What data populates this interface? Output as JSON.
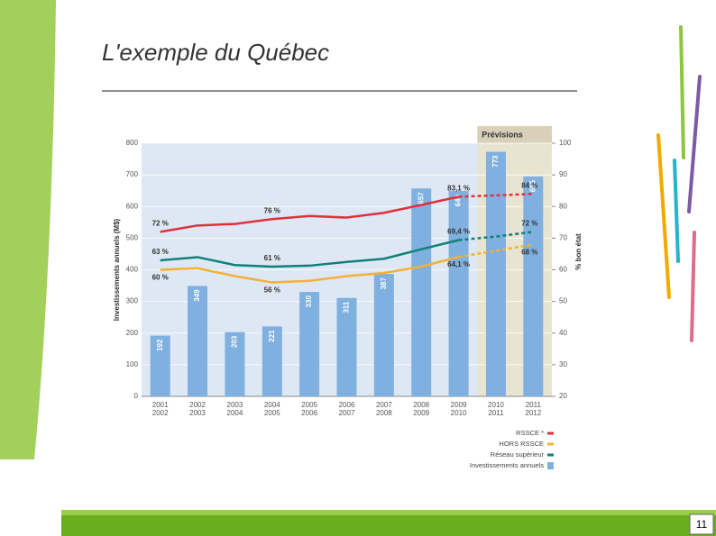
{
  "slide_title": "L'exemple du Québec",
  "page_number": "11",
  "chart_data": {
    "type": "bar",
    "categories": [
      "2001 2002",
      "2002 2003",
      "2003 2004",
      "2004 2005",
      "2005 2006",
      "2006 2007",
      "2007 2008",
      "2008 2009",
      "2009 2010",
      "2010 2011",
      "2011 2012"
    ],
    "ylabel": "Investissements annuels (M$)",
    "y2label": "% bon état",
    "annotation": "Prévisions",
    "forecast_from": "2010 2011",
    "ylim": [
      0,
      800
    ],
    "yticks": [
      0,
      100,
      200,
      300,
      400,
      500,
      600,
      700,
      800
    ],
    "y2lim": [
      20,
      100
    ],
    "y2ticks": [
      20,
      30,
      40,
      50,
      60,
      70,
      80,
      90,
      100
    ],
    "series": [
      {
        "name": "Investissements annuels",
        "type": "bar",
        "color": "#7fb0df",
        "values": [
          192,
          349,
          203,
          221,
          330,
          311,
          387,
          657,
          649,
          773,
          695
        ]
      },
      {
        "name": "RSSCE *",
        "type": "line",
        "axis": "y2",
        "color": "#e0303e",
        "dashed_from": "2009 2010",
        "values": [
          72,
          74,
          74.5,
          76,
          77,
          76.5,
          78,
          80.5,
          83.1,
          83.5,
          84
        ],
        "value_labels": [
          "72 %",
          null,
          null,
          "76 %",
          null,
          null,
          null,
          null,
          "83,1 %",
          null,
          "84 %"
        ]
      },
      {
        "name": "HORS RSSCE",
        "type": "line",
        "axis": "y2",
        "color": "#f2b134",
        "dashed_from": "2009 2010",
        "values": [
          60,
          60.5,
          58,
          56,
          56.5,
          58,
          59,
          61,
          64.1,
          66,
          68
        ],
        "value_labels": [
          "60 %",
          null,
          null,
          "56 %",
          null,
          null,
          null,
          null,
          "64,1 %",
          null,
          "68 %"
        ]
      },
      {
        "name": "Réseau supérieur",
        "type": "line",
        "axis": "y2",
        "color": "#12807a",
        "dashed_from": "2009 2010",
        "values": [
          63,
          64,
          61.5,
          61,
          61.3,
          62.5,
          63.5,
          66.5,
          69.4,
          70.5,
          72
        ],
        "value_labels": [
          "63 %",
          null,
          null,
          "61 %",
          null,
          null,
          null,
          null,
          "69,4 %",
          null,
          "72 %"
        ]
      }
    ]
  }
}
